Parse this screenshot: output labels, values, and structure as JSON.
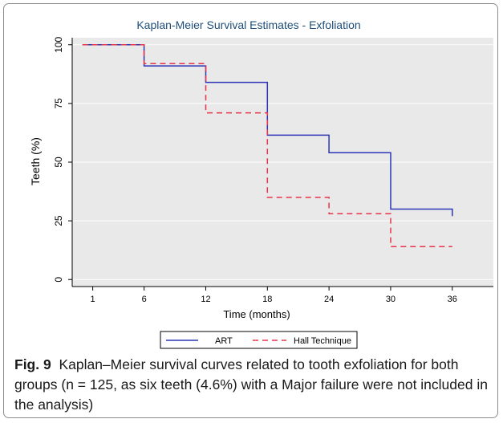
{
  "chart_data": {
    "type": "line",
    "subtype": "step",
    "title": "Kaplan-Meier Survival Estimates - Exfoliation",
    "xlabel": "Time (months)",
    "ylabel": "Teeth (%)",
    "x_ticks": [
      1,
      6,
      12,
      18,
      24,
      30,
      36
    ],
    "y_ticks": [
      0,
      25,
      50,
      75,
      100
    ],
    "xlim": [
      -1,
      40
    ],
    "ylim": [
      -3,
      103
    ],
    "grid": "horizontal",
    "legend_position": "bottom",
    "series": [
      {
        "name": "ART",
        "style": "solid",
        "color": "#2b35b5",
        "x": [
          0,
          6,
          12,
          18,
          24,
          30,
          36
        ],
        "y": [
          100,
          91,
          84,
          61.5,
          54,
          30,
          27
        ]
      },
      {
        "name": "Hall Technique",
        "style": "dashed",
        "color": "#e8334a",
        "x": [
          0,
          6,
          12,
          18,
          24,
          30,
          36
        ],
        "y": [
          100,
          92,
          71,
          35,
          28,
          14,
          14
        ]
      }
    ]
  },
  "caption": {
    "label": "Fig. 9",
    "text": "Kaplan–Meier survival curves related to tooth exfoliation for both groups (n = 125, as six teeth (4.6%) with a Major failure were not included in the analysis)"
  },
  "colors": {
    "plot_background": "#e9e9e9",
    "grid": "#ffffff",
    "title": "#1f4e79"
  }
}
